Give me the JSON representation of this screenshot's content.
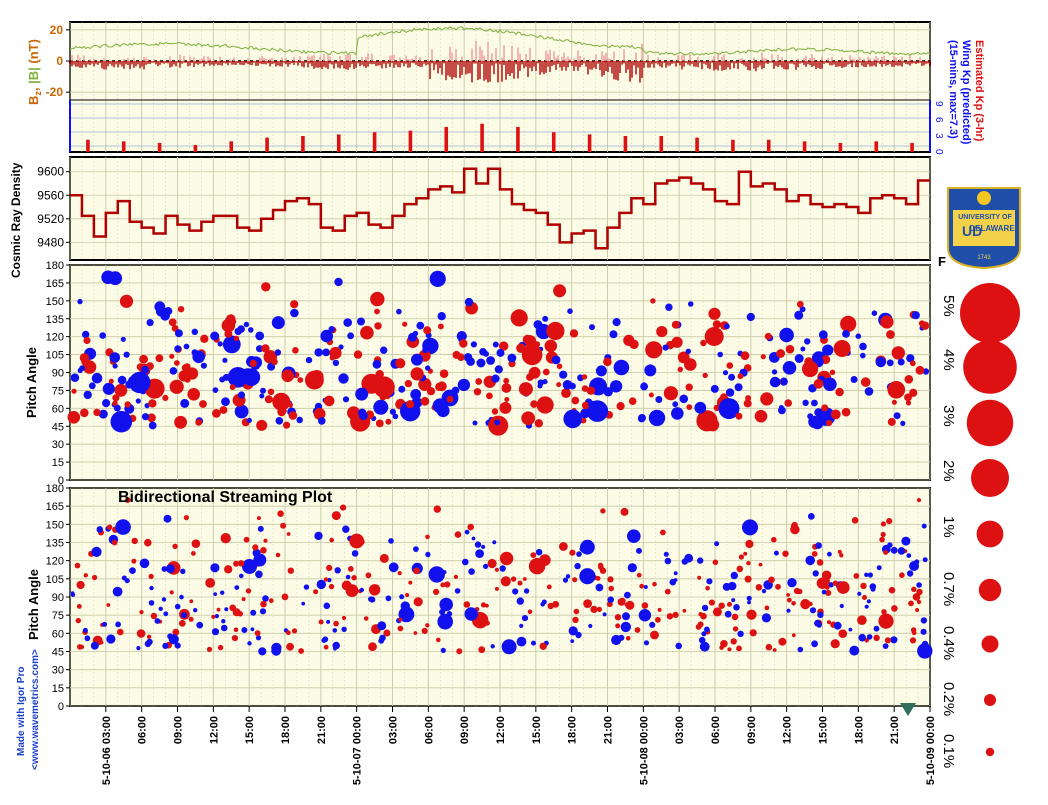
{
  "colors": {
    "plot_bg": "#fbfbe6",
    "grid": "#c9c9a6",
    "red": "#dd1111",
    "blue": "#1111ee",
    "dark_red": "#b00000",
    "pink": "#f19a9a",
    "green": "#7fb03b",
    "bz_label": "#cc6600",
    "axis": "#000000"
  },
  "credits": {
    "line1": "Made with Igor Pro",
    "line2": "<www.wavemetrics.com>"
  },
  "logo": {
    "line1": "UNIVERSITY OF",
    "line2": "DELAWARE",
    "line3": "1743",
    "mark": "UD"
  },
  "legend": {
    "header": "F",
    "labels": [
      "5%",
      "4%",
      "3%",
      "2%",
      "1%",
      "0.7%",
      "0.4%",
      "0.2%",
      "0.1%"
    ],
    "fractions": [
      0.05,
      0.04,
      0.03,
      0.02,
      0.01,
      0.007,
      0.004,
      0.002,
      0.001
    ]
  },
  "chart_data": [
    {
      "type": "line",
      "panel": "imf",
      "ylabel": "B_z, |B| (nT)",
      "ylabel_parts": {
        "bz": "B",
        "bz_sub": "z",
        "sep": ", ",
        "bmag": "|B|",
        "unit": " (nT)"
      },
      "ylim": [
        -25,
        25
      ],
      "yticks": [
        20,
        0,
        -20
      ],
      "right_labels": [
        "Estimated Kp (3-hr)",
        "Wing Kp (predicted)",
        "(15-mins, max=7.3)"
      ],
      "kp_ticks": [
        0,
        3,
        6,
        9
      ],
      "x_start": "2015-10-06 00:00",
      "x_ticks": [
        "5-10-06 03:00",
        "06:00",
        "09:00",
        "12:00",
        "15:00",
        "18:00",
        "21:00",
        "5-10-07 00:00",
        "03:00",
        "06:00",
        "09:00",
        "12:00",
        "15:00",
        "18:00",
        "21:00",
        "5-10-08 00:00",
        "03:00",
        "06:00",
        "09:00",
        "12:00",
        "15:00",
        "18:00",
        "21:00",
        "5-10-09 00:00"
      ],
      "kp_3hr": [
        2.3,
        2.0,
        1.7,
        1.3,
        2.0,
        2.7,
        3.0,
        3.3,
        3.7,
        4.0,
        4.7,
        5.3,
        4.7,
        3.7,
        3.3,
        3.0,
        3.0,
        2.7,
        2.3,
        2.3,
        2.0,
        1.7,
        2.0,
        1.7
      ]
    },
    {
      "type": "line",
      "panel": "cosmic_ray",
      "ylabel": "Cosmic Ray Density",
      "ylim": [
        9450,
        9625
      ],
      "yticks": [
        9480,
        9520,
        9560,
        9600
      ],
      "hours": [
        0,
        1,
        2,
        3,
        4,
        5,
        6,
        7,
        8,
        9,
        10,
        11,
        12,
        13,
        14,
        15,
        16,
        17,
        18,
        19,
        20,
        21,
        22,
        23,
        24,
        25,
        26,
        27,
        28,
        29,
        30,
        31,
        32,
        33,
        34,
        35,
        36,
        37,
        38,
        39,
        40,
        41,
        42,
        43,
        44,
        45,
        46,
        47,
        48,
        49,
        50,
        51,
        52,
        53,
        54,
        55,
        56,
        57,
        58,
        59,
        60,
        61,
        62,
        63,
        64,
        65,
        66,
        67,
        68,
        69,
        70,
        71
      ],
      "values": [
        9560,
        9525,
        9490,
        9530,
        9550,
        9515,
        9505,
        9495,
        9525,
        9510,
        9500,
        9515,
        9525,
        9525,
        9505,
        9500,
        9520,
        9535,
        9550,
        9555,
        9545,
        9505,
        9500,
        9525,
        9530,
        9510,
        9505,
        9525,
        9545,
        9555,
        9570,
        9575,
        9565,
        9605,
        9580,
        9605,
        9570,
        9545,
        9535,
        9530,
        9510,
        9480,
        9495,
        9500,
        9470,
        9505,
        9530,
        9555,
        9545,
        9580,
        9585,
        9590,
        9580,
        9570,
        9550,
        9545,
        9600,
        9575,
        9580,
        9570,
        9550,
        9560,
        9545,
        9540,
        9545,
        9540,
        9530,
        9555,
        9560,
        9555,
        9545,
        9585
      ]
    },
    {
      "type": "scatter",
      "panel": "pitch_angle",
      "ylabel": "Pitch Angle",
      "ylim": [
        0,
        180
      ],
      "yticks": [
        0,
        15,
        30,
        45,
        60,
        75,
        90,
        105,
        120,
        135,
        150,
        165,
        180
      ],
      "seed": 7
    },
    {
      "type": "scatter",
      "panel": "bidirectional",
      "title": "Bidirectional Streaming Plot",
      "ylabel": "Pitch Angle",
      "ylim": [
        0,
        180
      ],
      "yticks": [
        0,
        15,
        30,
        45,
        60,
        75,
        90,
        105,
        120,
        135,
        150,
        165,
        180
      ],
      "seed": 11
    }
  ]
}
